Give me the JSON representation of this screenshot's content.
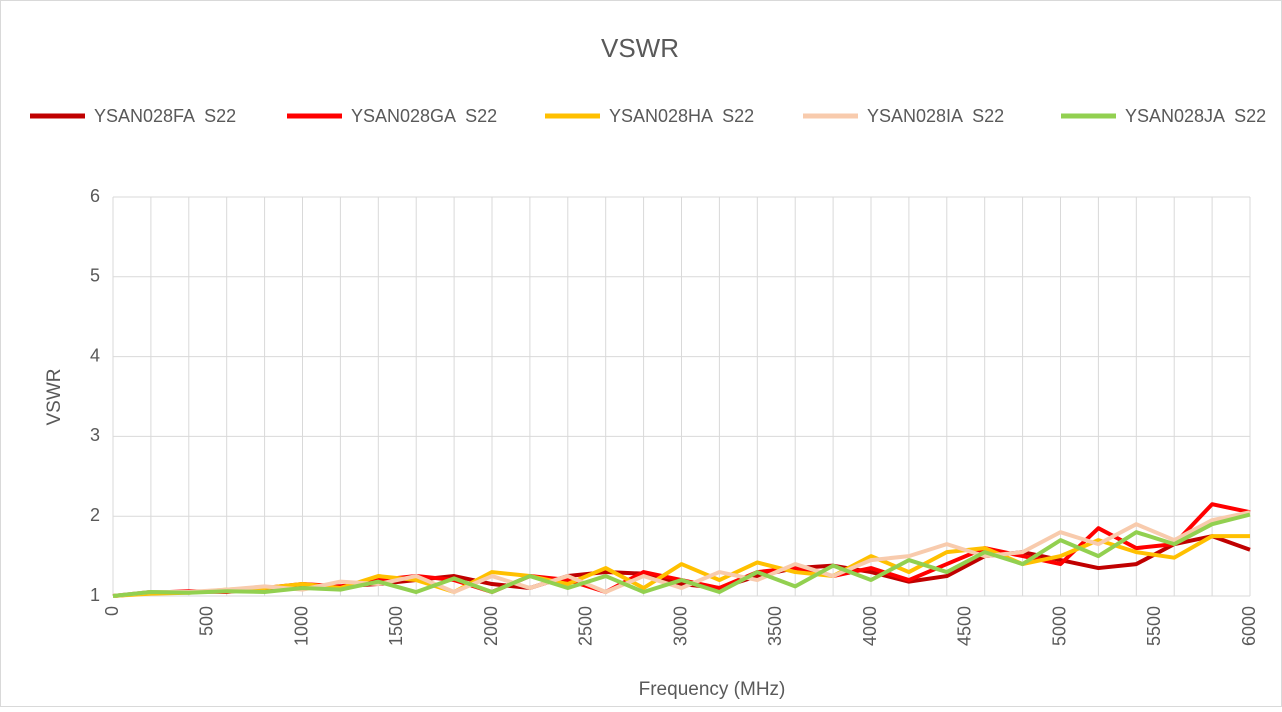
{
  "chart_data": {
    "type": "line",
    "title": "VSWR",
    "x_label": "Frequency (MHz)",
    "y_label": "VSWR",
    "x": [
      0,
      200,
      400,
      600,
      800,
      1000,
      1200,
      1400,
      1600,
      1800,
      2000,
      2200,
      2400,
      2600,
      2800,
      3000,
      3200,
      3400,
      3600,
      3800,
      4000,
      4200,
      4400,
      4600,
      4800,
      5000,
      5200,
      5400,
      5600,
      5800,
      6000
    ],
    "series": [
      {
        "name": "YSAN028FA  S22",
        "color": "#c00000",
        "values": [
          1.0,
          1.05,
          1.05,
          1.06,
          1.08,
          1.1,
          1.12,
          1.15,
          1.2,
          1.25,
          1.15,
          1.1,
          1.25,
          1.3,
          1.28,
          1.15,
          1.1,
          1.25,
          1.35,
          1.38,
          1.3,
          1.18,
          1.25,
          1.5,
          1.55,
          1.45,
          1.35,
          1.4,
          1.65,
          1.75,
          1.58
        ]
      },
      {
        "name": "YSAN028GA  S22",
        "color": "#ff0000",
        "values": [
          1.0,
          1.04,
          1.06,
          1.05,
          1.1,
          1.15,
          1.12,
          1.2,
          1.25,
          1.2,
          1.05,
          1.25,
          1.2,
          1.05,
          1.3,
          1.2,
          1.1,
          1.3,
          1.35,
          1.25,
          1.35,
          1.2,
          1.4,
          1.6,
          1.5,
          1.4,
          1.85,
          1.6,
          1.65,
          2.15,
          2.05
        ]
      },
      {
        "name": "YSAN028HA  S22",
        "color": "#ffc000",
        "values": [
          1.0,
          1.03,
          1.04,
          1.08,
          1.1,
          1.15,
          1.1,
          1.25,
          1.2,
          1.05,
          1.3,
          1.25,
          1.15,
          1.35,
          1.1,
          1.4,
          1.2,
          1.42,
          1.3,
          1.25,
          1.5,
          1.3,
          1.55,
          1.6,
          1.4,
          1.5,
          1.7,
          1.55,
          1.48,
          1.75,
          1.75
        ]
      },
      {
        "name": "YSAN028IA  S22",
        "color": "#f8cbad",
        "values": [
          1.0,
          1.05,
          1.05,
          1.08,
          1.12,
          1.08,
          1.18,
          1.15,
          1.25,
          1.05,
          1.25,
          1.1,
          1.25,
          1.05,
          1.25,
          1.1,
          1.3,
          1.2,
          1.4,
          1.25,
          1.45,
          1.5,
          1.65,
          1.5,
          1.55,
          1.8,
          1.65,
          1.9,
          1.7,
          1.95,
          2.05
        ]
      },
      {
        "name": "YSAN028JA  S22",
        "color": "#92d050",
        "values": [
          1.0,
          1.05,
          1.04,
          1.06,
          1.05,
          1.1,
          1.08,
          1.18,
          1.05,
          1.22,
          1.05,
          1.25,
          1.1,
          1.25,
          1.05,
          1.2,
          1.05,
          1.3,
          1.12,
          1.38,
          1.2,
          1.45,
          1.3,
          1.55,
          1.4,
          1.7,
          1.5,
          1.8,
          1.65,
          1.9,
          2.02
        ]
      }
    ],
    "xlim": [
      0,
      6000
    ],
    "xticks": [
      0,
      500,
      1000,
      1500,
      2000,
      2500,
      3000,
      3500,
      4000,
      4500,
      5000,
      5500,
      6000
    ],
    "xgrid": [
      0,
      200,
      400,
      600,
      800,
      1000,
      1200,
      1400,
      1600,
      1800,
      2000,
      2200,
      2400,
      2600,
      2800,
      3000,
      3200,
      3400,
      3600,
      3800,
      4000,
      4200,
      4400,
      4600,
      4800,
      5000,
      5200,
      5400,
      5600,
      5800,
      6000
    ],
    "ylim": [
      1,
      6
    ],
    "yticks": [
      1,
      2,
      3,
      4,
      5,
      6
    ],
    "grid": true,
    "legend": "top"
  }
}
